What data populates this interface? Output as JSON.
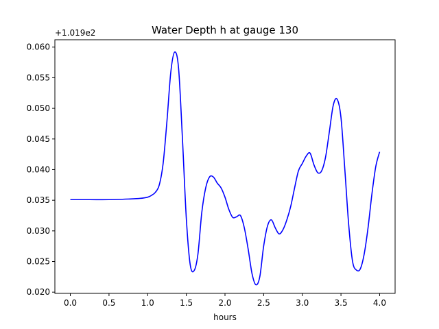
{
  "chart_data": {
    "type": "line",
    "title": "Water Depth h at gauge 130",
    "xlabel": "hours",
    "ylabel": "",
    "offset_label": "+1.019e2",
    "xlim": [
      -0.2,
      4.2
    ],
    "ylim": [
      0.0198,
      0.0612
    ],
    "xticks": [
      0.0,
      0.5,
      1.0,
      1.5,
      2.0,
      2.5,
      3.0,
      3.5,
      4.0
    ],
    "xtick_labels": [
      "0.0",
      "0.5",
      "1.0",
      "1.5",
      "2.0",
      "2.5",
      "3.0",
      "3.5",
      "4.0"
    ],
    "yticks": [
      0.02,
      0.025,
      0.03,
      0.035,
      0.04,
      0.045,
      0.05,
      0.055,
      0.06
    ],
    "ytick_labels": [
      "0.020",
      "0.025",
      "0.030",
      "0.035",
      "0.040",
      "0.045",
      "0.050",
      "0.055",
      "0.060"
    ],
    "grid": false,
    "series": [
      {
        "color": "#0000ff",
        "x": [
          0.0,
          0.25,
          0.5,
          0.75,
          0.9,
          1.0,
          1.05,
          1.1,
          1.15,
          1.2,
          1.25,
          1.3,
          1.35,
          1.4,
          1.45,
          1.5,
          1.55,
          1.6,
          1.65,
          1.7,
          1.75,
          1.8,
          1.85,
          1.9,
          1.95,
          2.0,
          2.05,
          2.1,
          2.15,
          2.2,
          2.25,
          2.3,
          2.35,
          2.4,
          2.45,
          2.5,
          2.55,
          2.6,
          2.65,
          2.7,
          2.75,
          2.8,
          2.85,
          2.9,
          2.95,
          3.0,
          3.05,
          3.1,
          3.15,
          3.2,
          3.25,
          3.3,
          3.35,
          3.4,
          3.45,
          3.5,
          3.55,
          3.6,
          3.65,
          3.7,
          3.75,
          3.8,
          3.85,
          3.9,
          3.95,
          4.0
        ],
        "y": [
          0.0351,
          0.0351,
          0.0351,
          0.0352,
          0.0353,
          0.0355,
          0.0358,
          0.0363,
          0.0375,
          0.041,
          0.048,
          0.056,
          0.0592,
          0.0565,
          0.045,
          0.032,
          0.0245,
          0.0235,
          0.0262,
          0.033,
          0.037,
          0.0388,
          0.0388,
          0.0378,
          0.037,
          0.0355,
          0.0335,
          0.0322,
          0.0323,
          0.0325,
          0.0305,
          0.027,
          0.023,
          0.0212,
          0.0225,
          0.0275,
          0.0308,
          0.0318,
          0.0305,
          0.0295,
          0.0302,
          0.0318,
          0.034,
          0.037,
          0.0398,
          0.041,
          0.0422,
          0.0427,
          0.0408,
          0.0395,
          0.0398,
          0.042,
          0.0462,
          0.0505,
          0.0515,
          0.0485,
          0.04,
          0.031,
          0.025,
          0.0236,
          0.0238,
          0.0262,
          0.0305,
          0.036,
          0.0405,
          0.0429
        ]
      }
    ]
  }
}
